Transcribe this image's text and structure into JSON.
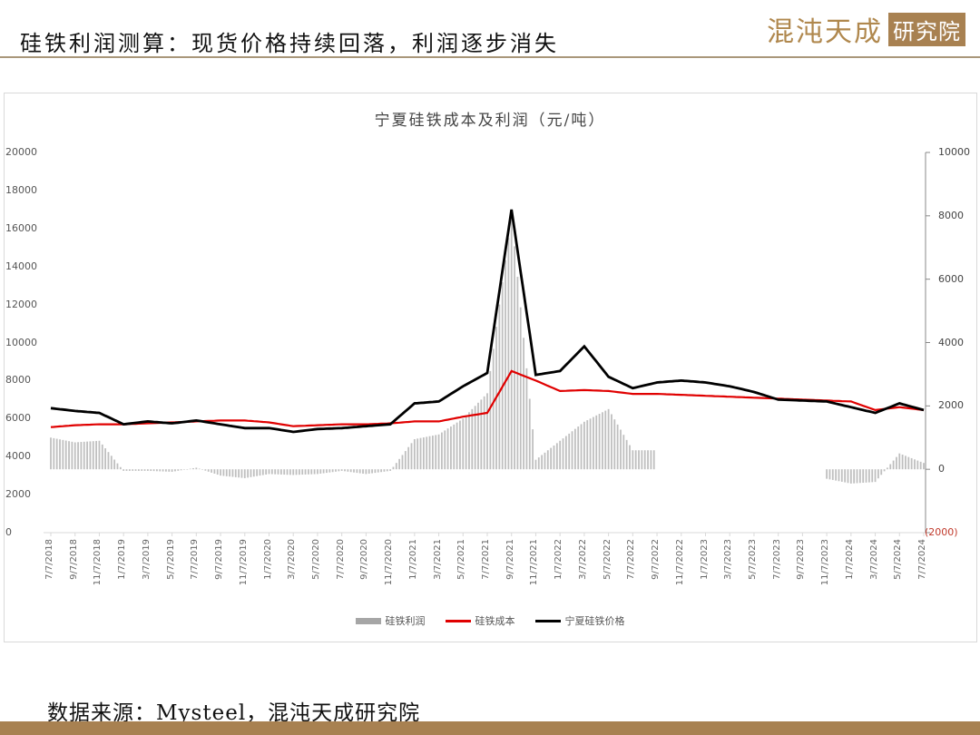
{
  "header": {
    "title": "硅铁利润测算：现货价格持续回落，利润逐步消失",
    "logo_main": "混沌天成",
    "logo_box": "研究院"
  },
  "footer": {
    "source": "数据来源：Mysteel，混沌天成研究院"
  },
  "colors": {
    "accent": "#a88151",
    "profit_bar": "#bfbfbf",
    "cost_line": "#e00000",
    "price_line": "#000000",
    "negative_label": "#c0392b"
  },
  "chart_data": {
    "type": "bar+line",
    "title": "宁夏硅铁成本及利润（元/吨）",
    "xlabel": "",
    "ylabel_left": "",
    "ylabel_right": "",
    "ylim_left": [
      0,
      20000
    ],
    "ylim_right": [
      -2000,
      10000
    ],
    "yticks_left": [
      "0",
      "2000",
      "4000",
      "6000",
      "8000",
      "10000",
      "12000",
      "14000",
      "16000",
      "18000",
      "20000"
    ],
    "yticks_right": [
      "(2000)",
      "0",
      "2000",
      "4000",
      "6000",
      "8000",
      "10000"
    ],
    "grid": false,
    "legend_position": "bottom",
    "categories": [
      "7/7/2018",
      "9/7/2018",
      "11/7/2018",
      "1/7/2019",
      "3/7/2019",
      "5/7/2019",
      "7/7/2019",
      "9/7/2019",
      "11/7/2019",
      "1/7/2020",
      "3/7/2020",
      "5/7/2020",
      "7/7/2020",
      "9/7/2020",
      "11/7/2020",
      "1/7/2021",
      "3/7/2021",
      "5/7/2021",
      "7/7/2021",
      "9/7/2021",
      "11/7/2021",
      "1/7/2022",
      "3/7/2022",
      "5/7/2022",
      "7/7/2022",
      "9/7/2022",
      "11/7/2022",
      "1/7/2023",
      "3/7/2023",
      "5/7/2023",
      "7/7/2023",
      "9/7/2023",
      "11/7/2023",
      "1/7/2024",
      "3/7/2024",
      "5/7/2024",
      "7/7/2024"
    ],
    "series": [
      {
        "name": "硅铁利润",
        "type": "bar",
        "axis": "right",
        "values": [
          1000,
          850,
          900,
          -50,
          -50,
          -80,
          50,
          -200,
          -280,
          -150,
          -180,
          -150,
          -50,
          -150,
          -50,
          950,
          1100,
          1600,
          2400,
          8000,
          300,
          900,
          1500,
          1900,
          600,
          null,
          null,
          null,
          null,
          null,
          null,
          null,
          -300,
          -450,
          -400,
          500,
          200
        ]
      },
      {
        "name": "硅铁成本",
        "type": "line",
        "axis": "left",
        "values": [
          5550,
          5650,
          5700,
          5700,
          5750,
          5800,
          5850,
          5900,
          5900,
          5800,
          5600,
          5650,
          5700,
          5700,
          5750,
          5850,
          5850,
          6100,
          6300,
          8500,
          8000,
          7450,
          7500,
          7450,
          7300,
          7300,
          7250,
          7200,
          7150,
          7100,
          7050,
          7000,
          6950,
          6900,
          6450,
          6600,
          6450
        ]
      },
      {
        "name": "宁夏硅铁价格",
        "type": "line",
        "axis": "left",
        "values": [
          6550,
          6400,
          6300,
          5700,
          5850,
          5750,
          5900,
          5700,
          5500,
          5500,
          5300,
          5450,
          5500,
          5600,
          5700,
          6800,
          6900,
          7700,
          8400,
          17000,
          8300,
          8500,
          9800,
          8200,
          7600,
          7900,
          8000,
          7900,
          7700,
          7400,
          7000,
          6950,
          6900,
          6600,
          6300,
          6800,
          6450
        ]
      }
    ]
  }
}
